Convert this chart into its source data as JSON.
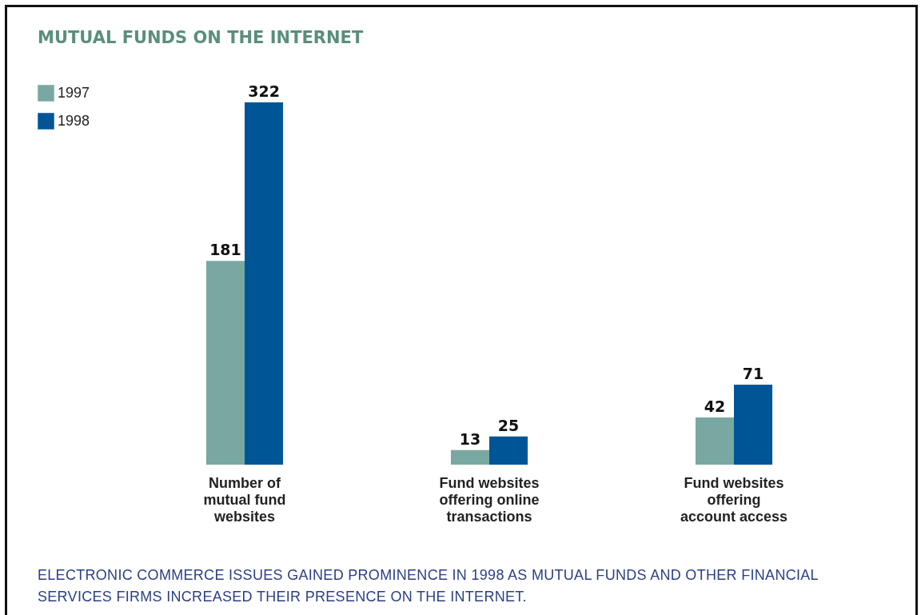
{
  "chart_data": {
    "type": "bar",
    "title": "MUTUAL FUNDS ON THE INTERNET",
    "categories": [
      "Number of mutual fund websites",
      "Fund websites offering online transactions",
      "Fund websites offering account access"
    ],
    "series": [
      {
        "name": "1997",
        "color": "#79a8a2",
        "values": [
          181,
          13,
          42
        ]
      },
      {
        "name": "1998",
        "color": "#005596",
        "values": [
          322,
          25,
          71
        ]
      }
    ],
    "data_labels": true,
    "legend": "top left",
    "annotations": [
      "ELECTRONIC COMMERCE ISSUES GAINED PROMINENCE IN 1998 AS MUTUAL FUNDS AND OTHER FINANCIAL SERVICES FIRMS INCREASED THEIR PRESENCE ON THE INTERNET."
    ]
  }
}
